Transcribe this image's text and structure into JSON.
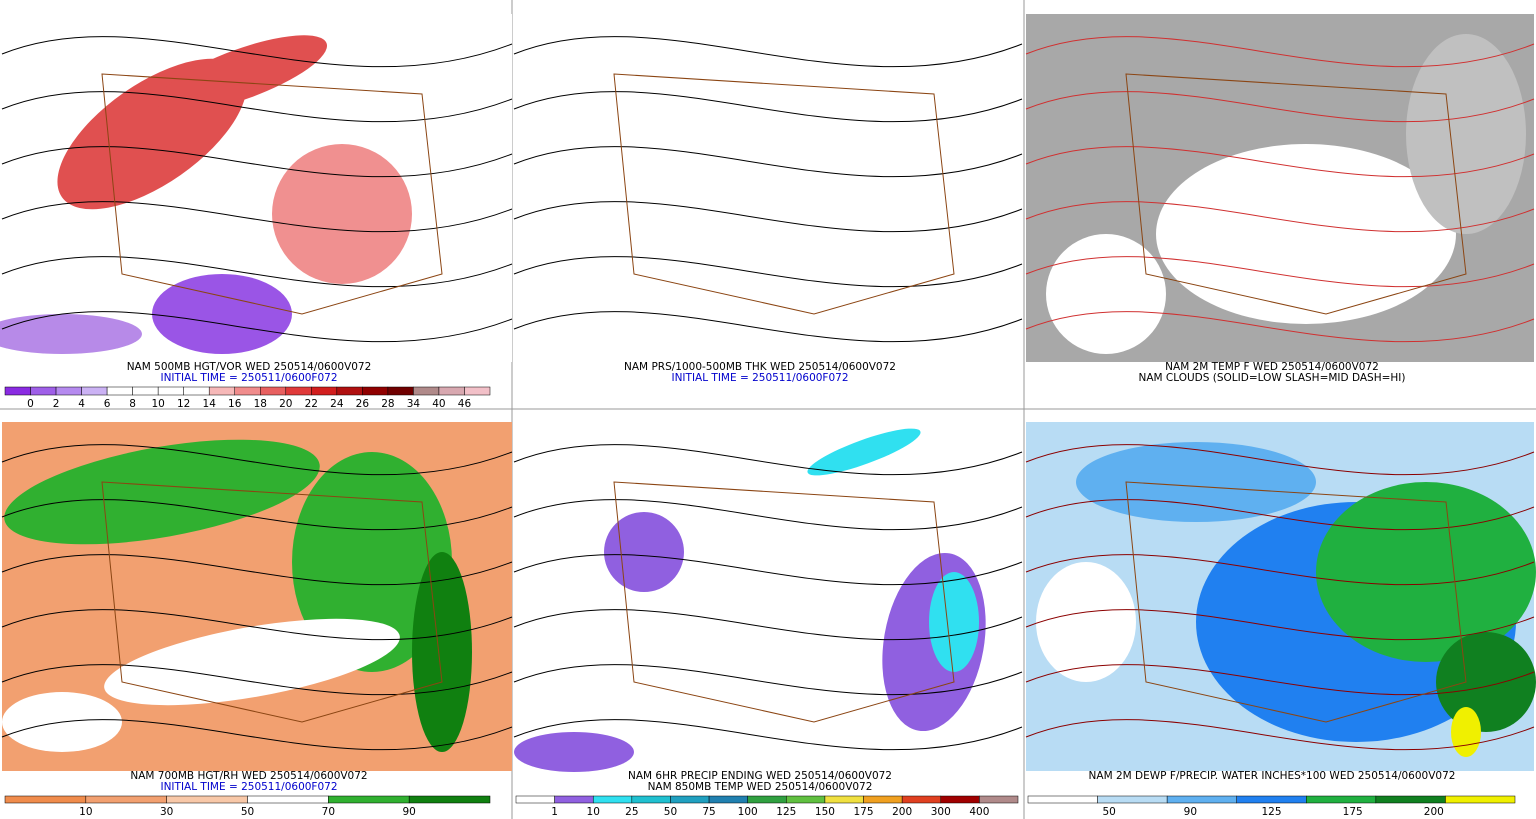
{
  "panels": [
    {
      "caption": [
        {
          "text": "NAM 500MB HGT/VOR WED 250514/0600V072",
          "color": "#000000"
        },
        {
          "text": "INITIAL TIME = 250511/0600F072",
          "color": "#0000cc"
        }
      ],
      "colorbar": {
        "colors": [
          "#8a2be2",
          "#9f5fe8",
          "#b58aef",
          "#cbb2f4",
          "#ffffff",
          "#ffffff",
          "#ffffff",
          "#ffffff",
          "#f6b8b8",
          "#f08c8c",
          "#e86060",
          "#e03a3a",
          "#d21e1e",
          "#b01010",
          "#900000",
          "#700000",
          "#b08a8a",
          "#d8a8b0",
          "#f2c0c8"
        ],
        "labels": [
          "0",
          "2",
          "4",
          "6",
          "8",
          "10",
          "12",
          "14",
          "16",
          "18",
          "20",
          "22",
          "24",
          "26",
          "28",
          "34",
          "40",
          "46"
        ]
      }
    },
    {
      "caption": [
        {
          "text": "NAM PRS/1000-500MB THK WED 250514/0600V072",
          "color": "#000000"
        },
        {
          "text": "INITIAL TIME = 250511/0600F072",
          "color": "#0000cc"
        }
      ]
    },
    {
      "caption": [
        {
          "text": "NAM 2M TEMP F WED 250514/0600V072",
          "color": "#000000"
        },
        {
          "text": "NAM CLOUDS (SOLID=LOW SLASH=MID DASH=HI)",
          "color": "#000000"
        }
      ]
    },
    {
      "caption": [
        {
          "text": "NAM 700MB HGT/RH WED 250514/0600V072",
          "color": "#000000"
        },
        {
          "text": "INITIAL TIME = 250511/0600F072",
          "color": "#0000cc"
        }
      ],
      "colorbar": {
        "colors": [
          "#f08c4c",
          "#f2a070",
          "#f8c8a8",
          "#ffffff",
          "#30b030",
          "#108010"
        ],
        "labels": [
          "10",
          "30",
          "50",
          "70",
          "90"
        ]
      }
    },
    {
      "caption": [
        {
          "text": "NAM 6HR PRECIP ENDING WED 250514/0600V072",
          "color": "#000000"
        },
        {
          "text": "NAM 850MB TEMP WED 250514/0600V072",
          "color": "#000000"
        }
      ],
      "colorbar": {
        "colors": [
          "#ffffff",
          "#9060e0",
          "#30e0f0",
          "#20c0d0",
          "#20a0c0",
          "#2080b0",
          "#30a040",
          "#60c040",
          "#f0e040",
          "#f0a020",
          "#e04020",
          "#a00000",
          "#b08a8a"
        ],
        "labels": [
          "1",
          "10",
          "25",
          "50",
          "75",
          "100",
          "125",
          "150",
          "175",
          "200",
          "300",
          "400"
        ]
      }
    },
    {
      "caption": [
        {
          "text": "NAM 2M DEWP F/PRECIP. WATER INCHES*100 WED 250514/0600V072",
          "color": "#000000"
        }
      ],
      "colorbar": {
        "colors": [
          "#ffffff",
          "#b8dcf4",
          "#5fb0f0",
          "#2080f0",
          "#20b040",
          "#108020",
          "#f0f000"
        ],
        "labels": [
          "50",
          "90",
          "125",
          "175",
          "200"
        ]
      }
    }
  ]
}
